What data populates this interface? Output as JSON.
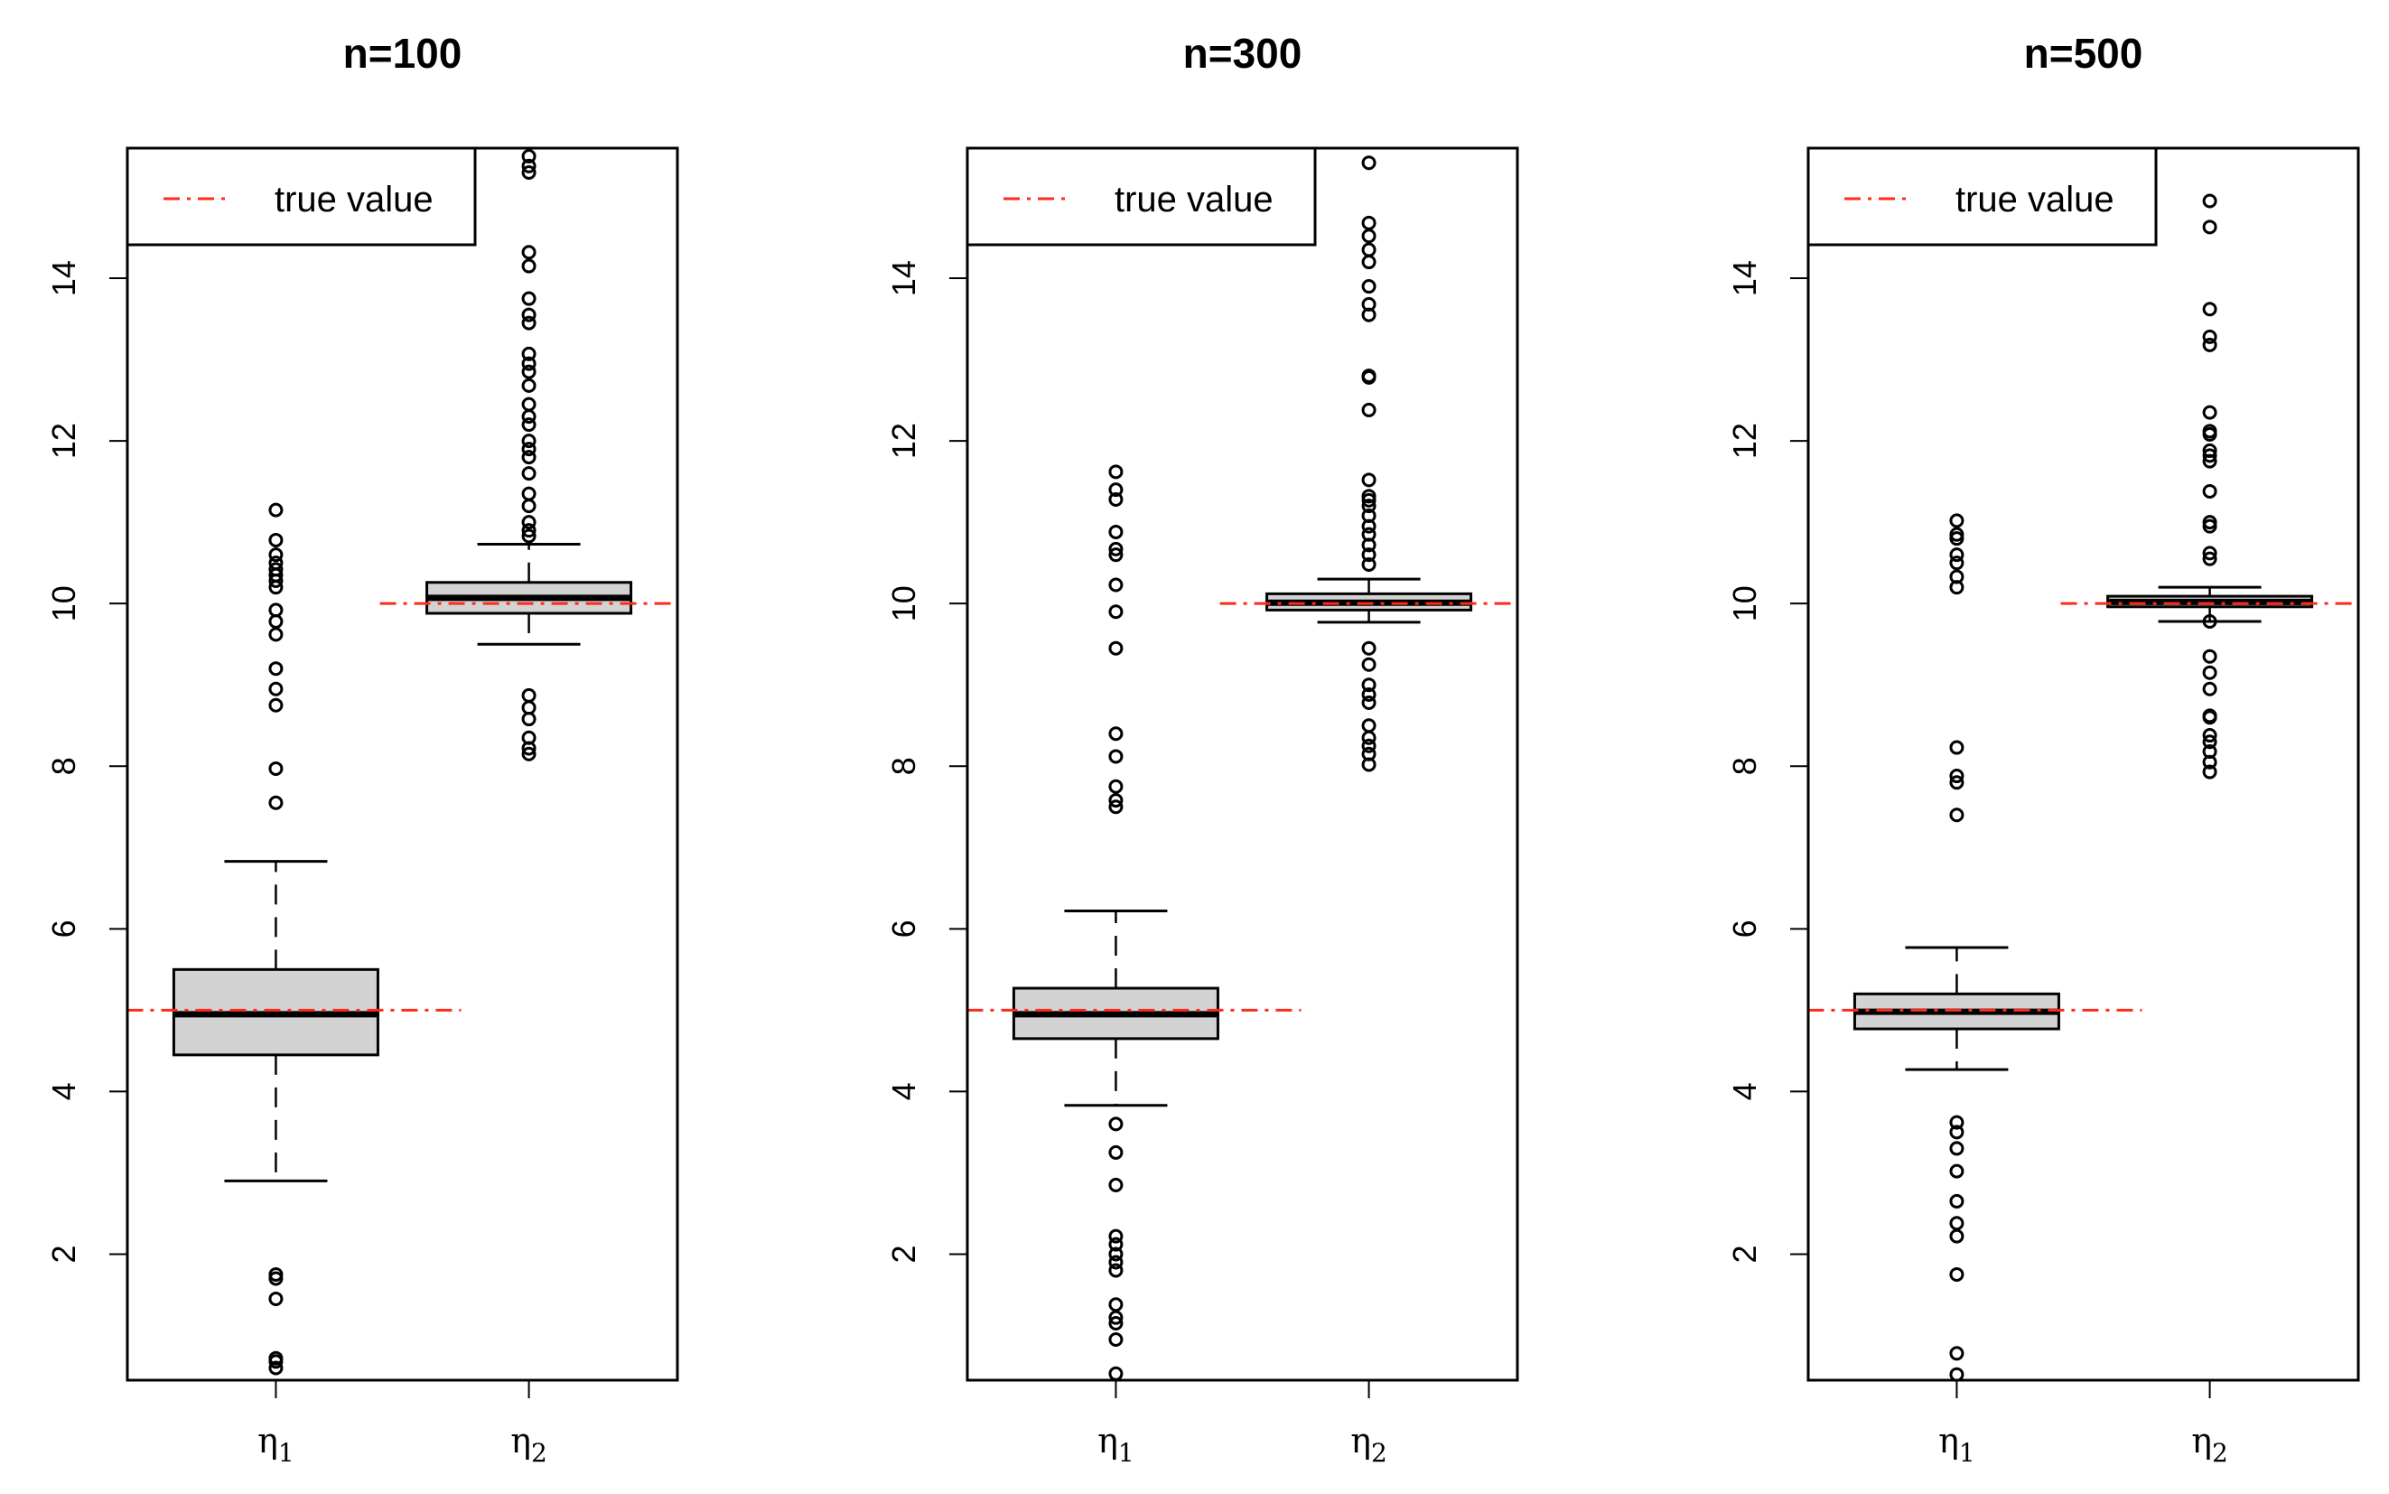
{
  "chart_data": [
    {
      "type": "boxplot",
      "title": "n=100",
      "xlabel": "",
      "ylabel": "",
      "ylim": [
        0.45,
        15.6
      ],
      "yticks": [
        2,
        4,
        6,
        8,
        10,
        12,
        14
      ],
      "categories": [
        {
          "base": "η",
          "sub": "1"
        },
        {
          "base": "η",
          "sub": "2"
        }
      ],
      "legend": {
        "position": "top-left",
        "label": "true value",
        "color": "#ff2a1a"
      },
      "colors": {
        "box_fill": "#d3d3d3",
        "box_stroke": "#000000",
        "true_line": "#ff2a1a"
      },
      "boxes": [
        {
          "q1": 4.45,
          "median": 4.95,
          "q3": 5.5,
          "whisker_low": 2.9,
          "whisker_high": 6.83,
          "true_value": 5,
          "outliers": [
            0.6,
            0.68,
            0.72,
            1.45,
            1.7,
            1.75,
            7.55,
            7.97,
            8.75,
            8.95,
            9.2,
            9.62,
            9.78,
            9.92,
            10.2,
            10.28,
            10.35,
            10.42,
            10.5,
            10.6,
            10.78,
            11.15
          ]
        },
        {
          "q1": 9.88,
          "median": 10.07,
          "q3": 10.26,
          "whisker_low": 9.5,
          "whisker_high": 10.73,
          "true_value": 10,
          "outliers": [
            8.15,
            8.22,
            8.35,
            8.58,
            8.72,
            8.87,
            10.83,
            10.9,
            11.0,
            11.2,
            11.35,
            11.6,
            11.8,
            11.9,
            12.0,
            12.2,
            12.3,
            12.45,
            12.68,
            12.85,
            12.95,
            13.07,
            13.45,
            13.55,
            13.75,
            14.15,
            14.32,
            15.3,
            15.38,
            15.5
          ]
        }
      ]
    },
    {
      "type": "boxplot",
      "title": "n=300",
      "xlabel": "",
      "ylabel": "",
      "ylim": [
        0.45,
        15.6
      ],
      "yticks": [
        2,
        4,
        6,
        8,
        10,
        12,
        14
      ],
      "categories": [
        {
          "base": "η",
          "sub": "1"
        },
        {
          "base": "η",
          "sub": "2"
        }
      ],
      "legend": {
        "position": "top-left",
        "label": "true value",
        "color": "#ff2a1a"
      },
      "colors": {
        "box_fill": "#d3d3d3",
        "box_stroke": "#000000",
        "true_line": "#ff2a1a"
      },
      "boxes": [
        {
          "q1": 4.65,
          "median": 4.95,
          "q3": 5.27,
          "whisker_low": 3.83,
          "whisker_high": 6.22,
          "true_value": 5,
          "outliers": [
            0.53,
            0.95,
            1.15,
            1.22,
            1.38,
            1.8,
            1.9,
            2.0,
            2.12,
            2.22,
            2.85,
            3.25,
            3.6,
            7.5,
            7.58,
            7.75,
            8.12,
            8.4,
            9.45,
            9.9,
            10.23,
            10.6,
            10.67,
            10.88,
            11.28,
            11.4,
            11.62
          ]
        },
        {
          "q1": 9.92,
          "median": 10.01,
          "q3": 10.12,
          "whisker_low": 9.77,
          "whisker_high": 10.3,
          "true_value": 10,
          "outliers": [
            8.02,
            8.15,
            8.25,
            8.35,
            8.5,
            8.78,
            8.88,
            9.0,
            9.25,
            9.45,
            10.48,
            10.6,
            10.72,
            10.85,
            10.95,
            11.08,
            11.2,
            11.27,
            11.32,
            11.52,
            12.38,
            12.78,
            12.8,
            13.55,
            13.68,
            13.9,
            14.2,
            14.35,
            14.52,
            14.68,
            15.42
          ]
        }
      ]
    },
    {
      "type": "boxplot",
      "title": "n=500",
      "xlabel": "",
      "ylabel": "",
      "ylim": [
        0.45,
        15.6
      ],
      "yticks": [
        2,
        4,
        6,
        8,
        10,
        12,
        14
      ],
      "categories": [
        {
          "base": "η",
          "sub": "1"
        },
        {
          "base": "η",
          "sub": "2"
        }
      ],
      "legend": {
        "position": "top-left",
        "label": "true value",
        "color": "#ff2a1a"
      },
      "colors": {
        "box_fill": "#d3d3d3",
        "box_stroke": "#000000",
        "true_line": "#ff2a1a"
      },
      "boxes": [
        {
          "q1": 4.77,
          "median": 4.98,
          "q3": 5.2,
          "whisker_low": 4.27,
          "whisker_high": 5.77,
          "true_value": 5,
          "outliers": [
            0.52,
            0.78,
            1.75,
            2.22,
            2.38,
            2.65,
            3.02,
            3.3,
            3.5,
            3.62,
            7.4,
            7.8,
            7.88,
            8.23,
            10.2,
            10.33,
            10.5,
            10.6,
            10.8,
            10.85,
            11.02
          ]
        },
        {
          "q1": 9.96,
          "median": 10.02,
          "q3": 10.09,
          "whisker_low": 9.78,
          "whisker_high": 10.2,
          "true_value": 10,
          "outliers": [
            7.93,
            8.05,
            8.18,
            8.3,
            8.38,
            8.6,
            8.62,
            8.95,
            9.15,
            9.35,
            9.78,
            10.55,
            10.62,
            10.95,
            11.0,
            11.38,
            11.75,
            11.82,
            11.88,
            12.08,
            12.12,
            12.35,
            13.18,
            13.28,
            13.62,
            14.63,
            14.95
          ]
        }
      ]
    }
  ]
}
